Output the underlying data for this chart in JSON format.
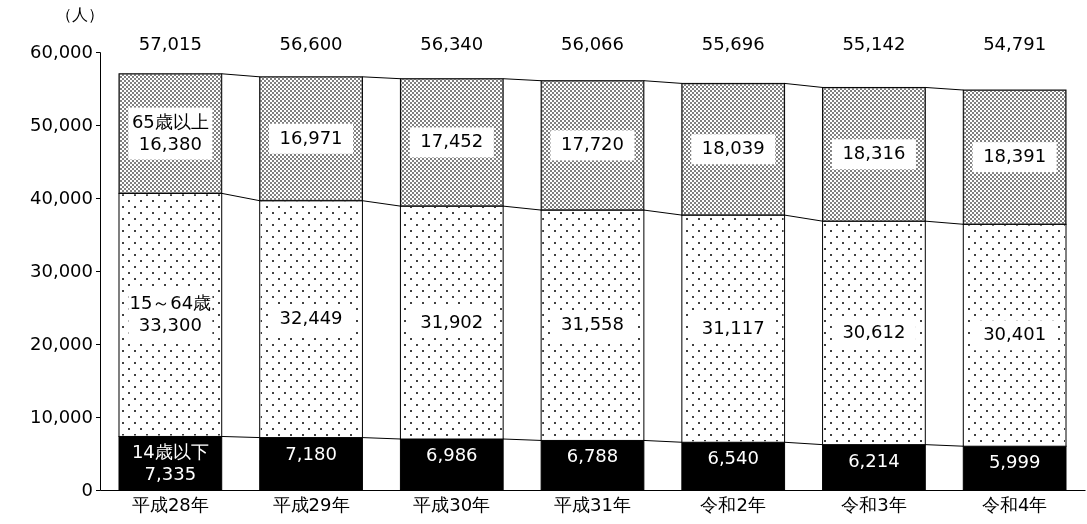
{
  "chart_data": {
    "type": "bar",
    "stacked": true,
    "ylabel": "（人）",
    "categories": [
      "平成28年",
      "平成29年",
      "平成30年",
      "平成31年",
      "令和2年",
      "令和3年",
      "令和4年"
    ],
    "series": [
      {
        "name": "14歳以下",
        "color": "#000000",
        "values": [
          7335,
          7180,
          6986,
          6788,
          6540,
          6214,
          5999
        ],
        "value_labels": [
          "7,335",
          "7,180",
          "6,986",
          "6,788",
          "6,540",
          "6,214",
          "5,999"
        ]
      },
      {
        "name": "15～64歳",
        "color": "#ffffff",
        "values": [
          33300,
          32449,
          31902,
          31558,
          31117,
          30612,
          30401
        ],
        "value_labels": [
          "33,300",
          "32,449",
          "31,902",
          "31,558",
          "31,117",
          "30,612",
          "30,401"
        ]
      },
      {
        "name": "65歳以上",
        "color": "#808080",
        "values": [
          16380,
          16971,
          17452,
          17720,
          18039,
          18316,
          18391
        ],
        "value_labels": [
          "16,380",
          "16,971",
          "17,452",
          "17,720",
          "18,039",
          "18,316",
          "18,391"
        ]
      }
    ],
    "totals": [
      "57,015",
      "56,600",
      "56,340",
      "56,066",
      "55,696",
      "55,142",
      "54,791"
    ],
    "ylim": [
      0,
      60000
    ],
    "yticks": [
      {
        "value": 0,
        "label": "0"
      },
      {
        "value": 10000,
        "label": "10,000"
      },
      {
        "value": 20000,
        "label": "20,000"
      },
      {
        "value": 30000,
        "label": "30,000"
      },
      {
        "value": 40000,
        "label": "40,000"
      },
      {
        "value": 50000,
        "label": "50,000"
      },
      {
        "value": 60000,
        "label": "60,000"
      }
    ],
    "grid": false,
    "legend": false
  }
}
